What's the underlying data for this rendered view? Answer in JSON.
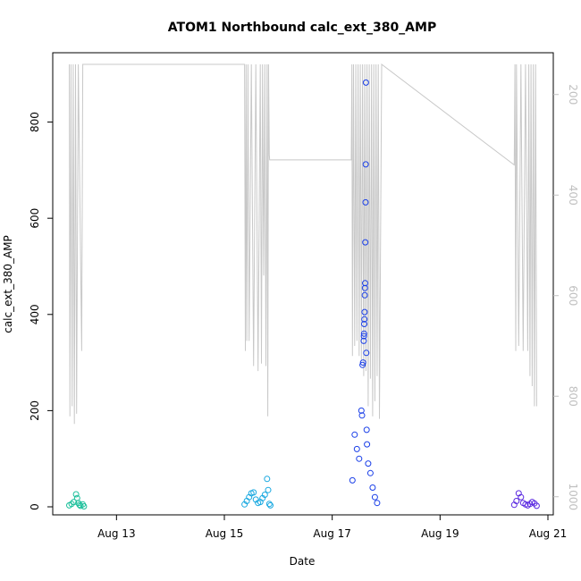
{
  "chart_data": {
    "type": "scatter",
    "title": "ATOM1 Northbound calc_ext_380_AMP",
    "xlabel": "Date",
    "ylabel": "calc_ext_380_AMP",
    "x_ticks": [
      "Aug 13",
      "Aug 15",
      "Aug 17",
      "Aug 19",
      "Aug 21"
    ],
    "y_ticks": [
      "0",
      "200",
      "400",
      "600",
      "800"
    ],
    "y2_ticks": [
      "200",
      "400",
      "600",
      "800",
      "1000"
    ],
    "xlim": [
      "2016-08-12",
      "2016-08-21"
    ],
    "ylim": [
      0,
      920
    ],
    "y2lim": [
      1020,
      140
    ],
    "y2_reversed": true,
    "grid": false,
    "series": [
      {
        "kind": "points",
        "color": "#1abf9a",
        "points": [
          [
            "2016-08-12T03:00",
            3
          ],
          [
            "2016-08-12T04:00",
            6
          ],
          [
            "2016-08-12T05:00",
            10
          ],
          [
            "2016-08-12T06:00",
            26
          ],
          [
            "2016-08-12T06:30",
            18
          ],
          [
            "2016-08-12T07:00",
            8
          ],
          [
            "2016-08-12T07:30",
            4
          ],
          [
            "2016-08-12T08:00",
            2
          ],
          [
            "2016-08-12T09:00",
            5
          ],
          [
            "2016-08-12T09:30",
            1
          ]
        ]
      },
      {
        "kind": "points",
        "color": "#18a8e0",
        "points": [
          [
            "2016-08-15T09:00",
            5
          ],
          [
            "2016-08-15T10:00",
            12
          ],
          [
            "2016-08-15T11:00",
            20
          ],
          [
            "2016-08-15T12:00",
            28
          ],
          [
            "2016-08-15T13:00",
            30
          ],
          [
            "2016-08-15T14:00",
            15
          ],
          [
            "2016-08-15T15:00",
            8
          ],
          [
            "2016-08-15T16:00",
            10
          ],
          [
            "2016-08-15T17:00",
            18
          ],
          [
            "2016-08-15T18:00",
            25
          ],
          [
            "2016-08-15T19:00",
            58
          ],
          [
            "2016-08-15T19:30",
            35
          ],
          [
            "2016-08-15T20:00",
            6
          ],
          [
            "2016-08-15T20:30",
            3
          ]
        ]
      },
      {
        "kind": "points",
        "color": "#1a3fe8",
        "points": [
          [
            "2016-08-17T09:00",
            55
          ],
          [
            "2016-08-17T10:00",
            150
          ],
          [
            "2016-08-17T11:00",
            120
          ],
          [
            "2016-08-17T12:00",
            100
          ],
          [
            "2016-08-17T13:00",
            200
          ],
          [
            "2016-08-17T13:15",
            190
          ],
          [
            "2016-08-17T13:30",
            295
          ],
          [
            "2016-08-17T13:45",
            300
          ],
          [
            "2016-08-17T14:00",
            345
          ],
          [
            "2016-08-17T14:05",
            355
          ],
          [
            "2016-08-17T14:10",
            360
          ],
          [
            "2016-08-17T14:15",
            380
          ],
          [
            "2016-08-17T14:20",
            390
          ],
          [
            "2016-08-17T14:25",
            405
          ],
          [
            "2016-08-17T14:30",
            440
          ],
          [
            "2016-08-17T14:35",
            455
          ],
          [
            "2016-08-17T14:40",
            465
          ],
          [
            "2016-08-17T14:45",
            550
          ],
          [
            "2016-08-17T14:50",
            633
          ],
          [
            "2016-08-17T14:55",
            712
          ],
          [
            "2016-08-17T15:00",
            882
          ],
          [
            "2016-08-17T15:10",
            320
          ],
          [
            "2016-08-17T15:20",
            160
          ],
          [
            "2016-08-17T15:30",
            130
          ],
          [
            "2016-08-17T16:00",
            90
          ],
          [
            "2016-08-17T17:00",
            70
          ],
          [
            "2016-08-17T18:00",
            40
          ],
          [
            "2016-08-17T19:00",
            20
          ],
          [
            "2016-08-17T20:00",
            8
          ]
        ]
      },
      {
        "kind": "points",
        "color": "#5a28e0",
        "points": [
          [
            "2016-08-20T09:00",
            4
          ],
          [
            "2016-08-20T10:00",
            12
          ],
          [
            "2016-08-20T11:00",
            28
          ],
          [
            "2016-08-20T12:00",
            20
          ],
          [
            "2016-08-20T13:00",
            8
          ],
          [
            "2016-08-20T14:00",
            5
          ],
          [
            "2016-08-20T15:00",
            3
          ],
          [
            "2016-08-20T16:00",
            6
          ],
          [
            "2016-08-20T17:00",
            10
          ],
          [
            "2016-08-20T18:00",
            7
          ],
          [
            "2016-08-20T19:00",
            2
          ]
        ]
      },
      {
        "kind": "line",
        "axis": "y2",
        "color": "#c8c8c8",
        "points": [
          [
            "2016-08-12T03:00",
            140
          ],
          [
            "2016-08-12T03:15",
            840
          ],
          [
            "2016-08-12T03:45",
            140
          ],
          [
            "2016-08-12T04:15",
            820
          ],
          [
            "2016-08-12T04:45",
            140
          ],
          [
            "2016-08-12T05:15",
            855
          ],
          [
            "2016-08-12T05:45",
            140
          ],
          [
            "2016-08-12T06:15",
            835
          ],
          [
            "2016-08-12T07:00",
            140
          ],
          [
            "2016-08-12T08:30",
            710
          ],
          [
            "2016-08-12T09:00",
            140
          ],
          [
            "2016-08-15T09:00",
            140
          ],
          [
            "2016-08-15T09:20",
            710
          ],
          [
            "2016-08-15T09:40",
            140
          ],
          [
            "2016-08-15T10:00",
            690
          ],
          [
            "2016-08-15T10:30",
            140
          ],
          [
            "2016-08-15T11:00",
            690
          ],
          [
            "2016-08-15T12:00",
            140
          ],
          [
            "2016-08-15T13:00",
            740
          ],
          [
            "2016-08-15T14:00",
            140
          ],
          [
            "2016-08-15T15:00",
            750
          ],
          [
            "2016-08-15T16:00",
            140
          ],
          [
            "2016-08-15T16:30",
            735
          ],
          [
            "2016-08-15T17:00",
            140
          ],
          [
            "2016-08-15T17:30",
            560
          ],
          [
            "2016-08-15T18:00",
            140
          ],
          [
            "2016-08-15T18:30",
            740
          ],
          [
            "2016-08-15T19:00",
            140
          ],
          [
            "2016-08-15T19:20",
            840
          ],
          [
            "2016-08-15T19:40",
            140
          ],
          [
            "2016-08-15T20:00",
            320
          ],
          [
            "2016-08-15T20:10",
            330
          ],
          [
            "2016-08-17T08:30",
            330
          ],
          [
            "2016-08-17T08:45",
            140
          ],
          [
            "2016-08-17T09:00",
            720
          ],
          [
            "2016-08-17T09:30",
            140
          ],
          [
            "2016-08-17T10:00",
            700
          ],
          [
            "2016-08-17T10:30",
            140
          ],
          [
            "2016-08-17T11:00",
            690
          ],
          [
            "2016-08-17T11:30",
            140
          ],
          [
            "2016-08-17T12:00",
            720
          ],
          [
            "2016-08-17T12:30",
            140
          ],
          [
            "2016-08-17T13:00",
            730
          ],
          [
            "2016-08-17T13:30",
            140
          ],
          [
            "2016-08-17T14:00",
            760
          ],
          [
            "2016-08-17T14:30",
            140
          ],
          [
            "2016-08-17T15:00",
            750
          ],
          [
            "2016-08-17T15:30",
            140
          ],
          [
            "2016-08-17T16:00",
            820
          ],
          [
            "2016-08-17T16:30",
            140
          ],
          [
            "2016-08-17T17:00",
            765
          ],
          [
            "2016-08-17T17:30",
            140
          ],
          [
            "2016-08-17T18:00",
            840
          ],
          [
            "2016-08-17T18:30",
            140
          ],
          [
            "2016-08-17T19:00",
            810
          ],
          [
            "2016-08-17T19:30",
            140
          ],
          [
            "2016-08-17T20:00",
            760
          ],
          [
            "2016-08-17T20:30",
            140
          ],
          [
            "2016-08-17T21:00",
            845
          ],
          [
            "2016-08-17T22:00",
            140
          ],
          [
            "2016-08-20T09:00",
            340
          ],
          [
            "2016-08-20T09:20",
            140
          ],
          [
            "2016-08-20T09:40",
            710
          ],
          [
            "2016-08-20T10:00",
            140
          ],
          [
            "2016-08-20T11:00",
            700
          ],
          [
            "2016-08-20T12:00",
            140
          ],
          [
            "2016-08-20T13:00",
            710
          ],
          [
            "2016-08-20T14:00",
            140
          ],
          [
            "2016-08-20T15:00",
            710
          ],
          [
            "2016-08-20T15:30",
            140
          ],
          [
            "2016-08-20T16:00",
            760
          ],
          [
            "2016-08-20T16:30",
            140
          ],
          [
            "2016-08-20T17:00",
            780
          ],
          [
            "2016-08-20T17:30",
            140
          ],
          [
            "2016-08-20T18:00",
            820
          ],
          [
            "2016-08-20T18:30",
            140
          ],
          [
            "2016-08-20T19:00",
            820
          ]
        ]
      }
    ]
  }
}
